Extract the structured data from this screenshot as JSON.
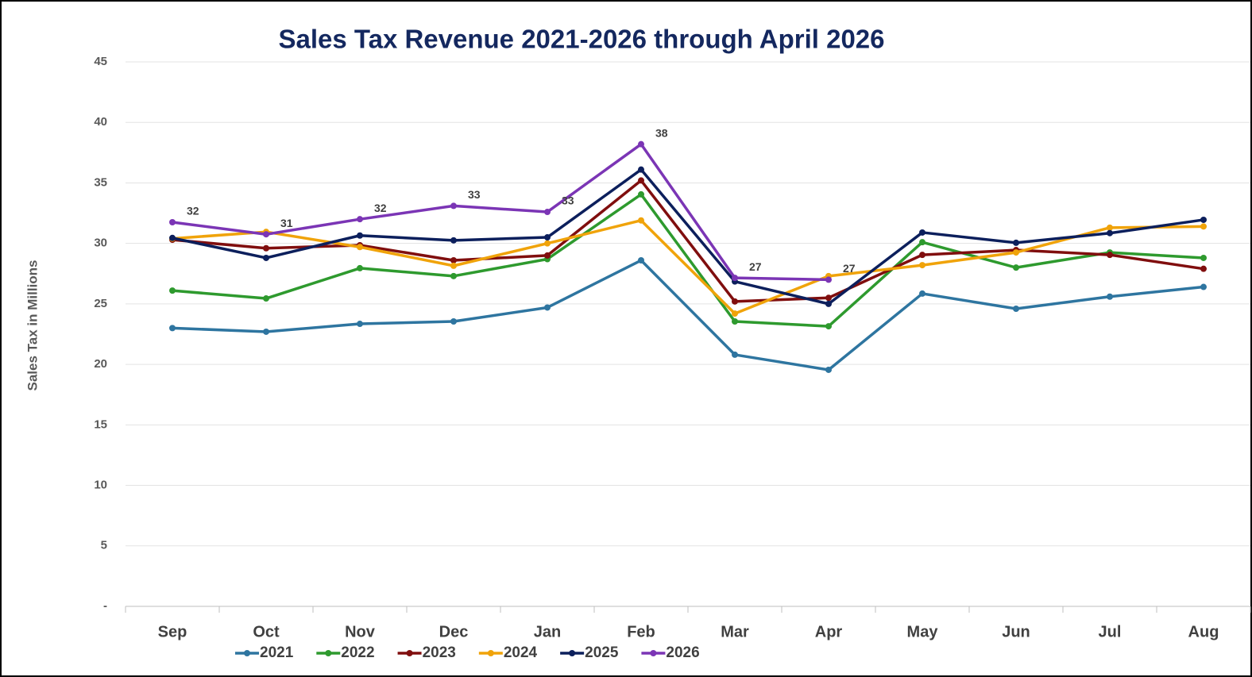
{
  "chart_data": {
    "type": "line",
    "title": "Sales Tax Revenue 2021-2026 through April 2026",
    "y_label": "Sales Tax in Millions",
    "categories": [
      "Sep",
      "Oct",
      "Nov",
      "Dec",
      "Jan",
      "Feb",
      "Mar",
      "Apr",
      "May",
      "Jun",
      "Jul",
      "Aug"
    ],
    "ylim": [
      0,
      45
    ],
    "yticks": [
      {
        "value": 0,
        "label": "-"
      },
      5,
      10,
      15,
      20,
      25,
      30,
      35,
      40,
      45
    ],
    "grid": true,
    "legend": "bottom",
    "series": [
      {
        "name": "2021",
        "color": "#2e75a0",
        "values": [
          23.0,
          22.7,
          23.35,
          23.55,
          24.7,
          28.6,
          20.8,
          19.55,
          25.85,
          24.6,
          25.6,
          26.4
        ]
      },
      {
        "name": "2022",
        "color": "#2e9a2e",
        "values": [
          26.1,
          25.45,
          27.95,
          27.3,
          28.7,
          34.05,
          23.55,
          23.15,
          30.1,
          28.0,
          29.25,
          28.8
        ]
      },
      {
        "name": "2023",
        "color": "#800e0e",
        "values": [
          30.3,
          29.6,
          29.85,
          28.6,
          29.0,
          35.2,
          25.2,
          25.5,
          29.05,
          29.45,
          29.05,
          27.9
        ]
      },
      {
        "name": "2024",
        "color": "#f0a30a",
        "values": [
          30.4,
          30.95,
          29.7,
          28.15,
          30.0,
          31.9,
          24.2,
          27.3,
          28.2,
          29.25,
          31.3,
          31.4
        ]
      },
      {
        "name": "2025",
        "color": "#0c1f5c",
        "values": [
          30.45,
          28.8,
          30.65,
          30.25,
          30.5,
          36.1,
          26.85,
          25.0,
          30.9,
          30.05,
          30.85,
          31.95
        ]
      },
      {
        "name": "2026",
        "color": "#7b35b5",
        "values": [
          31.75,
          30.75,
          32.0,
          33.1,
          32.6,
          38.2,
          27.15,
          27.0,
          null,
          null,
          null,
          null
        ],
        "value_labels": [
          "32",
          "31",
          "32",
          "33",
          "33",
          "38",
          "27",
          "27",
          null,
          null,
          null,
          null
        ]
      }
    ]
  }
}
